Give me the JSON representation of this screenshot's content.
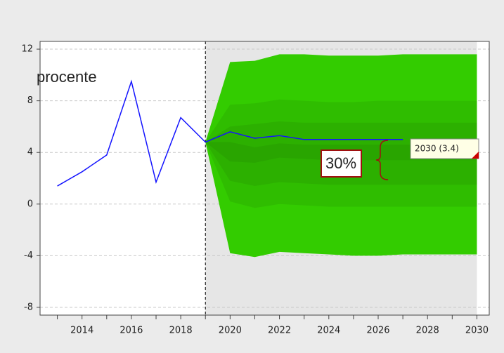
{
  "chart_data": {
    "type": "fan",
    "y_label": "procente",
    "x": [
      2013,
      2014,
      2015,
      2016,
      2017,
      2018,
      2019,
      2020,
      2021,
      2022,
      2023,
      2024,
      2025,
      2026,
      2027
    ],
    "series": [
      {
        "color": "#1414ff",
        "values": [
          1.4,
          2.5,
          3.8,
          9.5,
          1.7,
          6.7,
          4.8,
          5.6,
          5.1,
          5.3,
          5.0,
          5.0,
          5.0,
          5.0,
          5.0
        ]
      }
    ],
    "fan_x": [
      2019,
      2020,
      2021,
      2022,
      2023,
      2024,
      2025,
      2026,
      2027,
      2028,
      2029,
      2030
    ],
    "fan": [
      {
        "color": "#33cc00",
        "upper": [
          4.8,
          11.0,
          11.1,
          11.6,
          11.6,
          11.5,
          11.5,
          11.5,
          11.6,
          11.6,
          11.6,
          11.6
        ],
        "lower": [
          4.8,
          -3.8,
          -4.1,
          -3.7,
          -3.8,
          -3.9,
          -4.0,
          -4.0,
          -3.9,
          -3.9,
          -3.9,
          -3.9
        ]
      },
      {
        "color": "#2fbd00",
        "upper": [
          4.8,
          7.7,
          7.8,
          8.1,
          8.0,
          7.9,
          7.9,
          8.0,
          8.0,
          8.0,
          8.0,
          8.0
        ],
        "lower": [
          4.8,
          0.2,
          -0.3,
          0.0,
          -0.1,
          -0.2,
          -0.2,
          -0.2,
          -0.2,
          -0.2,
          -0.2,
          -0.2
        ]
      },
      {
        "color": "#2cb000",
        "upper": [
          4.8,
          6.0,
          6.2,
          6.4,
          6.3,
          6.3,
          6.3,
          6.3,
          6.3,
          6.3,
          6.3,
          6.3
        ],
        "lower": [
          4.8,
          1.8,
          1.4,
          1.7,
          1.6,
          1.5,
          1.5,
          1.5,
          1.5,
          1.5,
          1.5,
          1.5
        ]
      },
      {
        "color": "#29a500",
        "upper": [
          4.8,
          4.8,
          4.4,
          4.7,
          4.6,
          4.6,
          4.6,
          4.6,
          4.6,
          4.6,
          4.6,
          4.6
        ],
        "lower": [
          4.8,
          3.3,
          3.2,
          3.6,
          3.5,
          3.4,
          3.4,
          3.4,
          3.4,
          3.4,
          3.4,
          3.4
        ]
      }
    ],
    "forecast_start": 2019,
    "xlim": [
      2012.3,
      2030.5
    ],
    "ylim": [
      -8.6,
      12.6
    ],
    "xticks": [
      2014,
      2016,
      2018,
      2020,
      2022,
      2024,
      2026,
      2028,
      2030
    ],
    "yticks": [
      -8,
      -4,
      0,
      4,
      8,
      12
    ],
    "grid": true,
    "annotations": {
      "band_label": "30%",
      "tooltip": "2030  (3.4)"
    }
  }
}
